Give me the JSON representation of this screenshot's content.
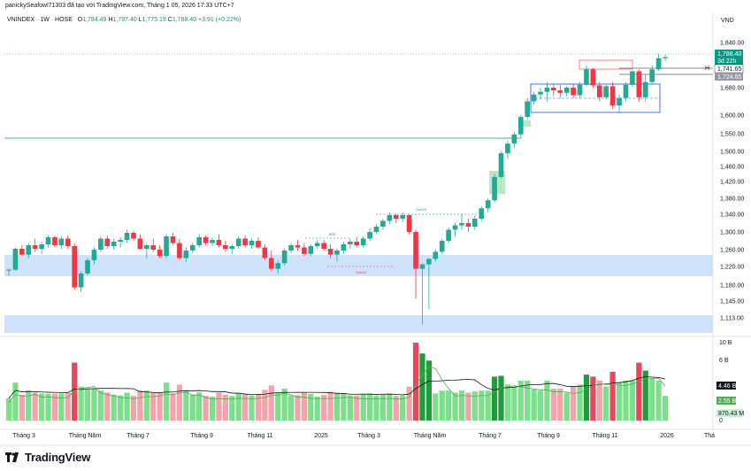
{
  "header": {
    "title": "panickySeafowl71303 đã tạo với TradingView.com, Tháng 1 05, 2026 17:33 UTC+7"
  },
  "legend": {
    "symbol": "VNINDEX · 1W · HOSE",
    "o_label": "O",
    "o": "1,784.49",
    "h_label": "H",
    "h": "1,797.40",
    "l_label": "L",
    "l": "1,775.19",
    "c_label": "C",
    "c": "1,788.40",
    "change": "+3.91 (+0.22%)"
  },
  "currency": "VND",
  "price_axis": {
    "ticks": [
      "1,840.00",
      "1,680.00",
      "1,600.00",
      "1,550.00",
      "1,500.00",
      "1,460.00",
      "1,420.00",
      "1,380.00",
      "1,340.00",
      "1,300.00",
      "1,260.00",
      "1,220.00",
      "1,180.00",
      "1,145.00",
      "1,113.00"
    ],
    "last_price": "1,788.40",
    "countdown": "3d 22h",
    "level_1": "1,741.65",
    "level_2": "1,724.65",
    "level_marker": "H"
  },
  "volume_axis": {
    "ticks": [
      "10 B",
      "6 B",
      "0"
    ],
    "tag_ma": "4.46 B",
    "tag_ma2": "2.55 B",
    "tag_vol": "870.43 M"
  },
  "time_axis": [
    "Tháng 3",
    "Tháng Năm",
    "Tháng 7",
    "Tháng 9",
    "Tháng 11",
    "2025",
    "Tháng 3",
    "Tháng Năm",
    "Tháng 7",
    "Tháng 9",
    "Tháng 11",
    "2026",
    "Thá"
  ],
  "annotations": {
    "bos": "BOS",
    "choch_upper": "CHoCH",
    "choch_lower": "CHoCH"
  },
  "brand": "TradingView",
  "colors": {
    "up": "#089981",
    "up_candle": "#22ab94",
    "down": "#f23645",
    "zone_blue": "#cfe2fb",
    "box_blue": "#2962ff",
    "ma_line": "#131722",
    "ma_green": "#4caf50"
  },
  "chart_data": {
    "type": "candlestick",
    "timeframe": "1W",
    "symbol": "VNINDEX",
    "y_axis_ticks": [
      1840,
      1680,
      1600,
      1550,
      1500,
      1460,
      1420,
      1380,
      1340,
      1300,
      1260,
      1220,
      1180,
      1145,
      1113
    ],
    "x_axis_labels": [
      "Tháng 3",
      "Tháng Năm",
      "Tháng 7",
      "Tháng 9",
      "Tháng 11",
      "2025",
      "Tháng 3",
      "Tháng Năm",
      "Tháng 7",
      "Tháng 9",
      "Tháng 11",
      "2026"
    ],
    "candles": [
      [
        1212,
        1216,
        1200,
        1213
      ],
      [
        1213,
        1265,
        1210,
        1262
      ],
      [
        1262,
        1270,
        1245,
        1248
      ],
      [
        1248,
        1275,
        1240,
        1270
      ],
      [
        1270,
        1285,
        1255,
        1262
      ],
      [
        1262,
        1278,
        1250,
        1272
      ],
      [
        1272,
        1292,
        1265,
        1288
      ],
      [
        1288,
        1292,
        1265,
        1270
      ],
      [
        1270,
        1290,
        1262,
        1285
      ],
      [
        1285,
        1292,
        1262,
        1268
      ],
      [
        1268,
        1275,
        1170,
        1175
      ],
      [
        1175,
        1210,
        1165,
        1205
      ],
      [
        1205,
        1240,
        1200,
        1235
      ],
      [
        1235,
        1265,
        1225,
        1260
      ],
      [
        1260,
        1290,
        1255,
        1285
      ],
      [
        1285,
        1292,
        1262,
        1268
      ],
      [
        1268,
        1285,
        1260,
        1278
      ],
      [
        1278,
        1288,
        1265,
        1282
      ],
      [
        1282,
        1305,
        1275,
        1298
      ],
      [
        1298,
        1302,
        1280,
        1285
      ],
      [
        1285,
        1295,
        1260,
        1262
      ],
      [
        1262,
        1275,
        1240,
        1270
      ],
      [
        1270,
        1285,
        1255,
        1260
      ],
      [
        1260,
        1270,
        1240,
        1245
      ],
      [
        1245,
        1295,
        1240,
        1290
      ],
      [
        1290,
        1298,
        1270,
        1275
      ],
      [
        1275,
        1285,
        1235,
        1240
      ],
      [
        1240,
        1265,
        1230,
        1258
      ],
      [
        1258,
        1275,
        1250,
        1270
      ],
      [
        1270,
        1295,
        1265,
        1288
      ],
      [
        1288,
        1292,
        1270,
        1275
      ],
      [
        1275,
        1288,
        1268,
        1282
      ],
      [
        1282,
        1295,
        1265,
        1270
      ],
      [
        1270,
        1280,
        1255,
        1262
      ],
      [
        1262,
        1272,
        1250,
        1268
      ],
      [
        1268,
        1290,
        1262,
        1285
      ],
      [
        1285,
        1292,
        1265,
        1270
      ],
      [
        1270,
        1285,
        1262,
        1280
      ],
      [
        1280,
        1288,
        1262,
        1265
      ],
      [
        1265,
        1272,
        1235,
        1240
      ],
      [
        1240,
        1258,
        1210,
        1215
      ],
      [
        1215,
        1235,
        1205,
        1228
      ],
      [
        1228,
        1262,
        1222,
        1258
      ],
      [
        1258,
        1275,
        1252,
        1270
      ],
      [
        1270,
        1282,
        1258,
        1265
      ],
      [
        1265,
        1275,
        1245,
        1250
      ],
      [
        1250,
        1272,
        1245,
        1268
      ],
      [
        1268,
        1282,
        1262,
        1275
      ],
      [
        1275,
        1282,
        1258,
        1262
      ],
      [
        1262,
        1272,
        1240,
        1248
      ],
      [
        1248,
        1262,
        1232,
        1258
      ],
      [
        1258,
        1278,
        1250,
        1272
      ],
      [
        1272,
        1285,
        1262,
        1278
      ],
      [
        1278,
        1288,
        1265,
        1270
      ],
      [
        1270,
        1290,
        1265,
        1285
      ],
      [
        1285,
        1308,
        1280,
        1300
      ],
      [
        1300,
        1318,
        1295,
        1312
      ],
      [
        1312,
        1330,
        1305,
        1325
      ],
      [
        1325,
        1345,
        1318,
        1338
      ],
      [
        1338,
        1342,
        1320,
        1330
      ],
      [
        1330,
        1345,
        1322,
        1338
      ],
      [
        1338,
        1340,
        1295,
        1300
      ],
      [
        1300,
        1305,
        1150,
        1215
      ],
      [
        1215,
        1228,
        1100,
        1225
      ],
      [
        1225,
        1240,
        1130,
        1238
      ],
      [
        1238,
        1260,
        1232,
        1255
      ],
      [
        1255,
        1285,
        1250,
        1280
      ],
      [
        1280,
        1310,
        1275,
        1305
      ],
      [
        1305,
        1320,
        1290,
        1315
      ],
      [
        1315,
        1340,
        1305,
        1320
      ],
      [
        1320,
        1330,
        1300,
        1312
      ],
      [
        1312,
        1338,
        1305,
        1330
      ],
      [
        1330,
        1360,
        1325,
        1355
      ],
      [
        1355,
        1380,
        1345,
        1375
      ],
      [
        1375,
        1440,
        1370,
        1432
      ],
      [
        1432,
        1500,
        1428,
        1495
      ],
      [
        1495,
        1530,
        1480,
        1522
      ],
      [
        1522,
        1555,
        1510,
        1548
      ],
      [
        1548,
        1600,
        1540,
        1595
      ],
      [
        1595,
        1650,
        1590,
        1640
      ],
      [
        1640,
        1668,
        1630,
        1660
      ],
      [
        1660,
        1680,
        1645,
        1668
      ],
      [
        1668,
        1700,
        1640,
        1680
      ],
      [
        1680,
        1695,
        1655,
        1672
      ],
      [
        1672,
        1690,
        1650,
        1665
      ],
      [
        1665,
        1685,
        1655,
        1680
      ],
      [
        1680,
        1695,
        1650,
        1658
      ],
      [
        1658,
        1700,
        1650,
        1690
      ],
      [
        1690,
        1760,
        1685,
        1745
      ],
      [
        1745,
        1750,
        1680,
        1688
      ],
      [
        1688,
        1700,
        1640,
        1652
      ],
      [
        1652,
        1690,
        1645,
        1685
      ],
      [
        1685,
        1700,
        1618,
        1628
      ],
      [
        1628,
        1660,
        1605,
        1650
      ],
      [
        1650,
        1700,
        1640,
        1690
      ],
      [
        1690,
        1742,
        1682,
        1738
      ],
      [
        1738,
        1745,
        1640,
        1652
      ],
      [
        1652,
        1725,
        1640,
        1700
      ],
      [
        1700,
        1760,
        1695,
        1745
      ],
      [
        1745,
        1800,
        1740,
        1784
      ],
      [
        1784,
        1797,
        1775,
        1788
      ]
    ],
    "volume_ma_series": [
      "volume MA (black)",
      "volume MA (green)"
    ]
  }
}
